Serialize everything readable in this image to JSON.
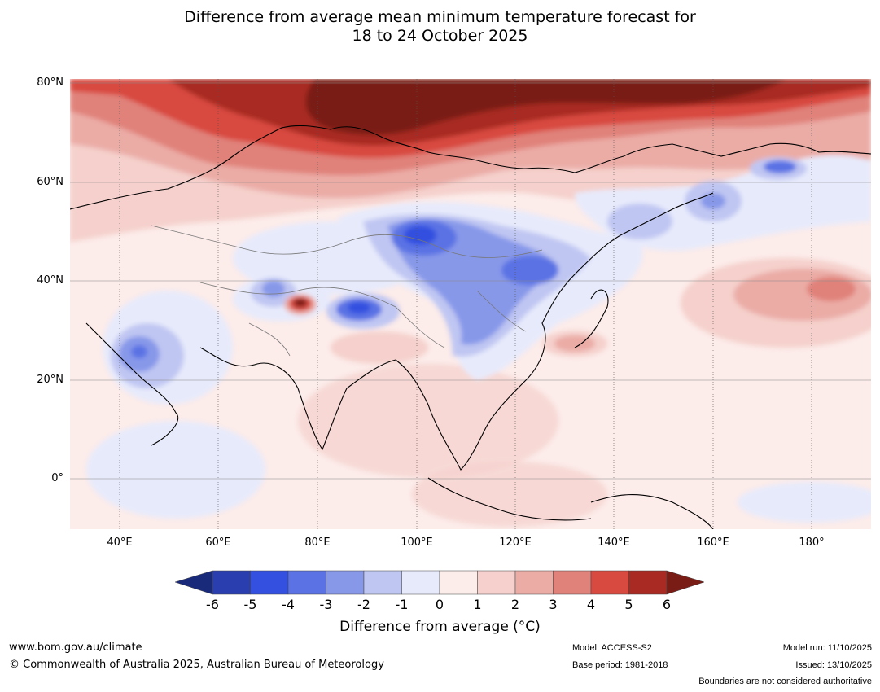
{
  "title": {
    "line1": "Difference from average mean minimum temperature forecast for",
    "line2": "18 to 24 October 2025"
  },
  "map": {
    "lat_labels": [
      "80°N",
      "60°N",
      "40°N",
      "20°N",
      "0°"
    ],
    "lon_labels": [
      "40°E",
      "60°E",
      "80°E",
      "100°E",
      "120°E",
      "140°E",
      "160°E",
      "180°"
    ]
  },
  "colorbar": {
    "ticks": [
      "-6",
      "-5",
      "-4",
      "-3",
      "-2",
      "-1",
      "0",
      "1",
      "2",
      "3",
      "4",
      "5",
      "6"
    ],
    "colors": {
      "below_min": "#1a2a7a",
      "n6_n5": "#2a3eb0",
      "n5_n4": "#3350e0",
      "n4_n3": "#5a72e4",
      "n3_n2": "#8798e9",
      "n2_n1": "#bfc6f2",
      "n1_0": "#e7eafb",
      "0_1": "#fcecea",
      "1_2": "#f5d0cc",
      "2_3": "#ebaca6",
      "3_4": "#e0827a",
      "4_5": "#d84a3f",
      "5_6": "#a82a22",
      "above_max": "#7a1c16"
    },
    "label": "Difference from average (°C)"
  },
  "footer": {
    "website": "www.bom.gov.au/climate",
    "copyright": "© Commonwealth of Australia 2025, Australian Bureau of Meteorology",
    "model": "Model: ACCESS-S2",
    "base_period": "Base period: 1981-2018",
    "model_run": "Model run: 11/10/2025",
    "issued": "Issued: 13/10/2025",
    "disclaimer": "Boundaries are not considered authoritative"
  }
}
